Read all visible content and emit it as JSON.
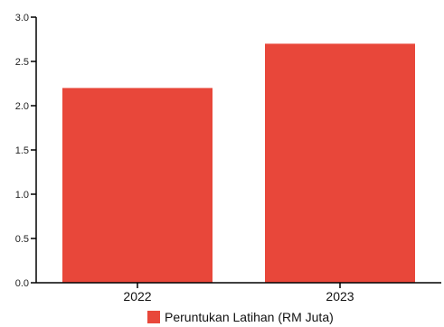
{
  "chart_data": {
    "type": "bar",
    "categories": [
      "2022",
      "2023"
    ],
    "series": [
      {
        "name": "Peruntukan Latihan (RM Juta)",
        "values": [
          2.2,
          2.7
        ],
        "color": "#e8473a"
      }
    ],
    "ylim": [
      0,
      3.0
    ],
    "yticks": [
      "0.0",
      "0.5",
      "1.0",
      "1.5",
      "2.0",
      "2.5",
      "3.0"
    ],
    "grid": false,
    "legend": {
      "position": "bottom-center",
      "label": "Peruntukan Latihan (RM Juta)"
    }
  }
}
